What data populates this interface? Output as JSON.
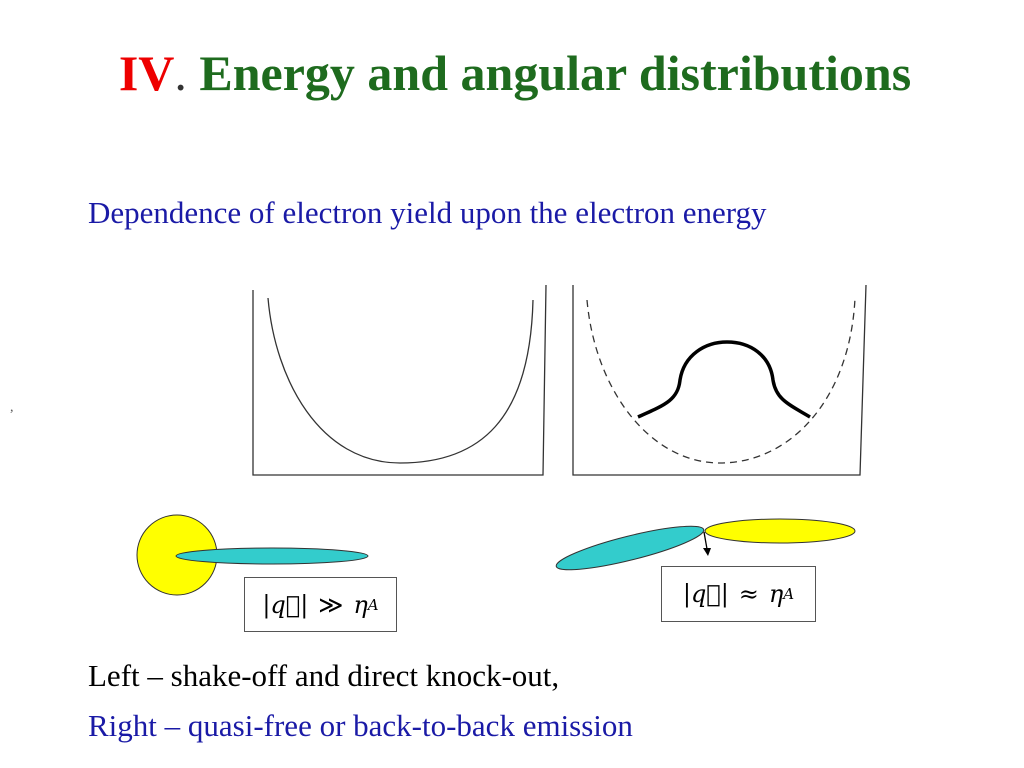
{
  "title": {
    "number": "IV",
    "separator": ".",
    "text": "Energy and angular distributions"
  },
  "subtitle": "Dependence of electron yield upon the electron energy",
  "stray_mark": ",",
  "labels": [
    {
      "lhs": "|q⃗|",
      "relation": "≫",
      "rhs": "η",
      "subscript": "A"
    },
    {
      "lhs": "|q⃗|",
      "relation": "≈",
      "rhs": "η",
      "subscript": "A"
    }
  ],
  "captions": [
    "Left – shake-off and direct knock-out,",
    "Right – quasi-free or back-to-back emission"
  ]
}
